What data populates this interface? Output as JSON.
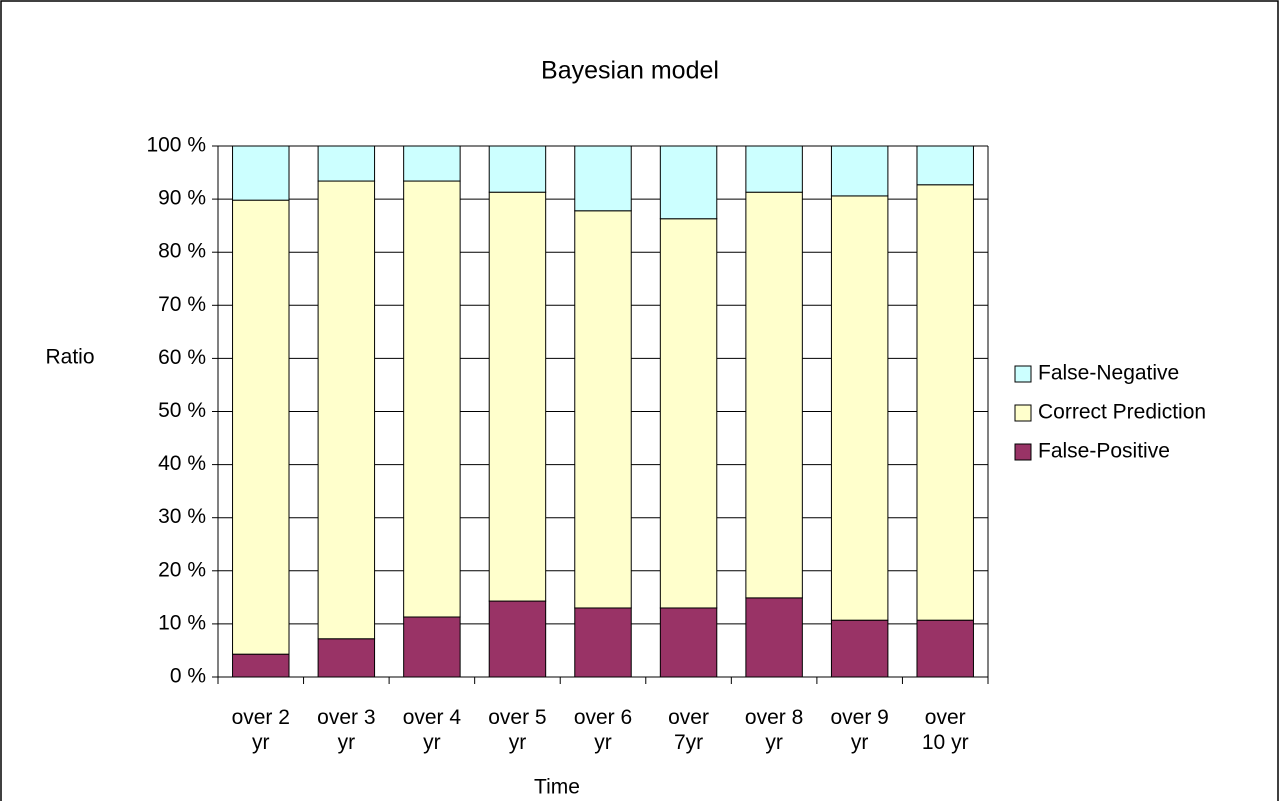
{
  "chart_data": {
    "type": "stacked_bar",
    "title": "Bayesian model",
    "x_label": "Time",
    "y_label": "Ratio",
    "categories": [
      "over 2 yr",
      "over 3 yr",
      "over 4 yr",
      "over 5 yr",
      "over 6 yr",
      "over 7yr",
      "over 8 yr",
      "over 9 yr",
      "over 10 yr"
    ],
    "series": [
      {
        "name": "False-Positive",
        "color": "#993366",
        "values": [
          4.3,
          7.2,
          11.3,
          14.3,
          13.0,
          13.0,
          14.9,
          10.7,
          10.7
        ]
      },
      {
        "name": "Correct Prediction",
        "color": "#FFFFCC",
        "values": [
          85.5,
          86.2,
          82.1,
          77.0,
          74.8,
          73.3,
          76.4,
          79.9,
          82.0
        ]
      },
      {
        "name": "False-Negative",
        "color": "#CCFFFF",
        "values": [
          10.2,
          6.6,
          6.6,
          8.7,
          12.2,
          13.7,
          8.7,
          9.4,
          7.3
        ]
      }
    ],
    "ylim": [
      0,
      100
    ],
    "yticks": [
      {
        "value": 0,
        "label": "0 %"
      },
      {
        "value": 10,
        "label": "10 %"
      },
      {
        "value": 20,
        "label": "20 %"
      },
      {
        "value": 30,
        "label": "30 %"
      },
      {
        "value": 40,
        "label": "40 %"
      },
      {
        "value": 50,
        "label": "50 %"
      },
      {
        "value": 60,
        "label": "60 %"
      },
      {
        "value": 70,
        "label": "70 %"
      },
      {
        "value": 80,
        "label": "80 %"
      },
      {
        "value": 90,
        "label": "90 %"
      },
      {
        "value": 100,
        "label": "100 %"
      }
    ],
    "grid": true,
    "legend": "right"
  }
}
